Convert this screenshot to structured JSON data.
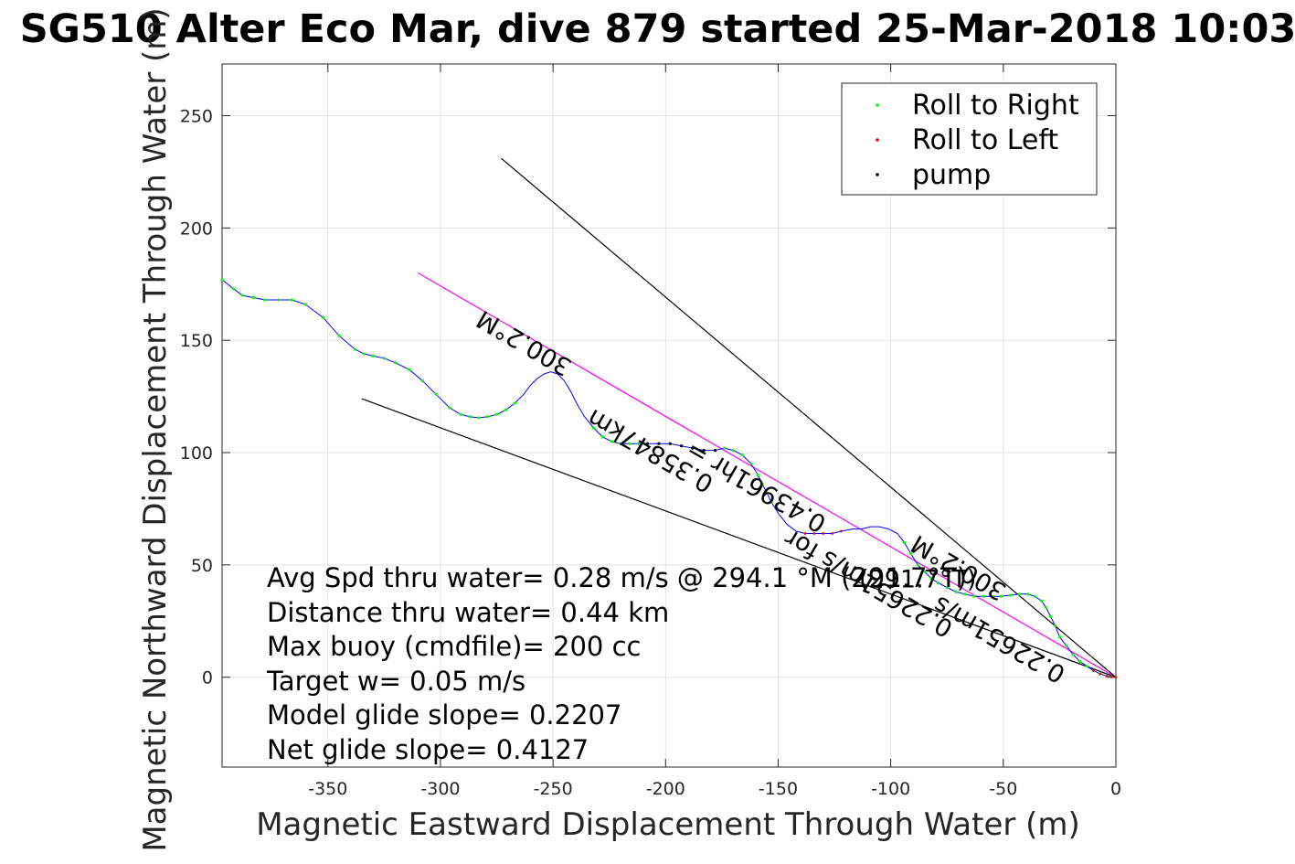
{
  "chart_data": {
    "type": "line",
    "title": "SG510 Alter Eco Mar, dive 879 started 25-Mar-2018 10:03",
    "xlabel": "Magnetic Eastward Displacement Through Water (m)",
    "ylabel": "Magnetic Northward Displacement Through Water (m)",
    "xlim": [
      -397,
      0
    ],
    "ylim": [
      -40,
      273
    ],
    "xticks": [
      -350,
      -300,
      -250,
      -200,
      -150,
      -100,
      -50,
      0
    ],
    "yticks": [
      0,
      50,
      100,
      150,
      200,
      250
    ],
    "grid": true,
    "legend": {
      "position": "top-right",
      "entries": [
        {
          "label": "Roll to Right",
          "color": "#00ff00"
        },
        {
          "label": "Roll to Left",
          "color": "#ff0000"
        },
        {
          "label": "pump",
          "color": "#000000"
        }
      ]
    },
    "track": {
      "color": "#0000ff",
      "x": [
        -397,
        -392,
        -388,
        -383,
        -378,
        -372,
        -366,
        -360,
        -352,
        -345,
        -338,
        -334,
        -330,
        -325,
        -320,
        -314,
        -308,
        -302,
        -296,
        -291,
        -287,
        -283,
        -279,
        -275,
        -271,
        -267,
        -263,
        -260,
        -257,
        -254,
        -251,
        -248,
        -245,
        -242,
        -239,
        -236,
        -232,
        -228,
        -224,
        -220,
        -216,
        -212,
        -208,
        -203,
        -198,
        -193,
        -188,
        -183,
        -178,
        -174,
        -170,
        -166,
        -162,
        -159,
        -157,
        -155,
        -153,
        -150,
        -146,
        -142,
        -138,
        -134,
        -130,
        -126,
        -122,
        -117,
        -113,
        -109,
        -105,
        -101,
        -97,
        -94,
        -91,
        -88,
        -85,
        -82,
        -79,
        -75,
        -71,
        -67,
        -63,
        -59,
        -55,
        -51,
        -47,
        -43,
        -39,
        -36,
        -33,
        -31,
        -29,
        -27,
        -25,
        -22,
        -19,
        -16,
        -13,
        -10,
        -7,
        -4,
        -2,
        0
      ],
      "y": [
        177,
        173,
        170,
        169,
        168,
        168,
        168,
        166,
        160,
        152,
        146,
        144,
        143,
        142,
        140,
        137,
        132,
        126,
        120,
        117,
        116,
        115.5,
        116,
        117,
        119,
        122,
        126,
        130,
        133,
        135,
        136,
        135,
        132,
        127,
        121,
        116,
        111,
        107,
        105,
        104,
        104,
        104,
        104,
        104,
        104,
        103,
        102,
        101,
        101,
        102,
        101,
        99,
        95,
        90,
        86,
        82,
        78,
        73,
        68,
        65,
        64,
        64,
        64,
        64,
        65,
        66,
        66,
        67,
        67,
        66,
        64,
        60,
        55,
        50,
        47,
        44,
        42,
        40,
        38,
        37,
        36,
        36,
        36,
        36,
        36.5,
        37,
        37,
        36,
        34,
        31,
        27,
        23,
        18,
        14,
        10,
        7,
        5,
        3,
        1.5,
        0.5,
        0.2,
        0
      ]
    },
    "reference_lines": [
      {
        "name": "course",
        "color": "#ff00ff",
        "x": [
          -310,
          0
        ],
        "y": [
          180,
          0
        ]
      },
      {
        "name": "envelope-upper",
        "color": "#000000",
        "x": [
          -273,
          0
        ],
        "y": [
          231,
          0
        ]
      },
      {
        "name": "envelope-lower",
        "color": "#000000",
        "x": [
          -335,
          0
        ],
        "y": [
          124,
          0
        ]
      }
    ],
    "rotated_labels": [
      {
        "text": "300.2°M",
        "x": -261,
        "y": 152,
        "angle_deg": 210
      },
      {
        "text": "0.35847km",
        "x": -205,
        "y": 104,
        "angle_deg": 210
      },
      {
        "text": "0.43961hr =",
        "x": -158,
        "y": 88,
        "angle_deg": 210
      },
      {
        "text": "0.22651m/s for",
        "x": -108,
        "y": 45,
        "angle_deg": 210
      },
      {
        "text": "300.2°M",
        "x": -68,
        "y": 52,
        "angle_deg": 210
      },
      {
        "text": "0.22651m/s",
        "x": -50,
        "y": 20,
        "angle_deg": 210
      },
      {
        "text": "(291.7°T)",
        "x": -88,
        "y": 40,
        "angle_deg": 0
      }
    ],
    "annotations": [
      "Avg Spd thru water=  0.28 m/s @ 294.1 °M (291.7°T)",
      "Distance thru water=  0.44 km",
      "Max buoy (cmdfile)= 200 cc",
      "Target w= 0.05 m/s",
      "Model glide slope= 0.2207",
      "Net glide slope= 0.4127"
    ]
  }
}
